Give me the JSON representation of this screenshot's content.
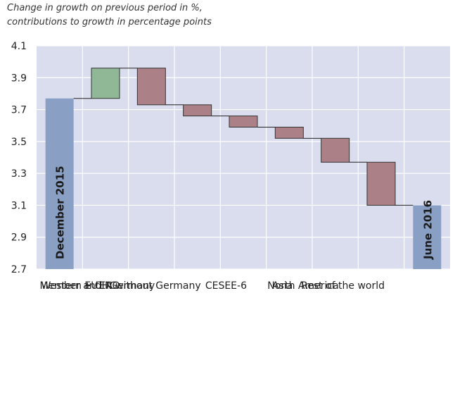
{
  "subtitle": [
    "Change in growth on previous period in %,",
    "contributions to growth in percentage points"
  ],
  "colors": {
    "plot_bg": "#d9dded",
    "grid": "#ffffff",
    "total_bar": "#8a9fc4",
    "positive_bar": "#90b896",
    "negative_bar": "#ab8087",
    "connector": "#222222"
  },
  "chart_data": {
    "type": "bar",
    "subtype": "waterfall",
    "title": "",
    "xlabel": "",
    "ylabel": "",
    "ylim": [
      2.7,
      4.1
    ],
    "yticks": [
      "2.7",
      "2.9",
      "3.1",
      "3.3",
      "3.5",
      "3.7",
      "3.9",
      "4.1"
    ],
    "grid": true,
    "bars": [
      {
        "category": "",
        "bar_label": "December 2015",
        "kind": "total",
        "start": 2.7,
        "end": 3.77
      },
      {
        "category": "Western EU Member + CH and NO",
        "kind": "positive",
        "start": 3.77,
        "end": 3.96
      },
      {
        "category": "Germany",
        "kind": "negative",
        "start": 3.96,
        "end": 3.73
      },
      {
        "category": "EA without Germany",
        "kind": "negative",
        "start": 3.73,
        "end": 3.66
      },
      {
        "category": "CESEE-6",
        "kind": "negative",
        "start": 3.66,
        "end": 3.59
      },
      {
        "category": "Asia",
        "kind": "negative",
        "start": 3.59,
        "end": 3.52
      },
      {
        "category": "North America",
        "kind": "negative",
        "start": 3.52,
        "end": 3.37
      },
      {
        "category": "Rest of the world",
        "kind": "negative",
        "start": 3.37,
        "end": 3.1
      },
      {
        "category": "",
        "bar_label": "June 2016",
        "kind": "total",
        "start": 2.7,
        "end": 3.1
      }
    ]
  }
}
